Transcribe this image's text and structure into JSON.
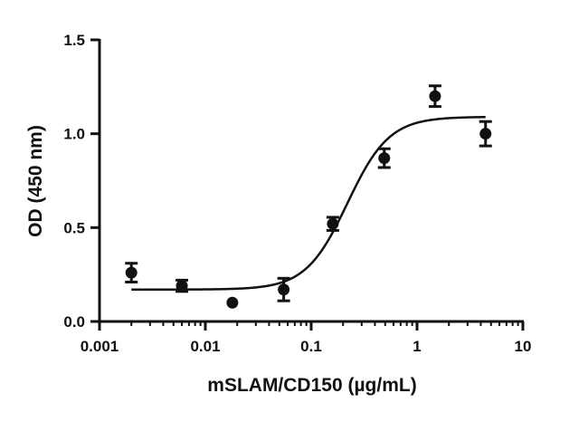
{
  "chart_data": {
    "type": "scatter",
    "title": "",
    "xlabel": "mSLAM/CD150 (µg/mL)",
    "ylabel": "OD (450 nm)",
    "xscale": "log",
    "xlim": [
      0.001,
      10
    ],
    "ylim": [
      0,
      1.5
    ],
    "x_ticks": [
      0.001,
      0.01,
      0.1,
      1,
      10
    ],
    "x_tick_labels": [
      "0.001",
      "0.01",
      "0.1",
      "1",
      "10"
    ],
    "y_ticks": [
      0,
      0.5,
      1.0,
      1.5
    ],
    "y_tick_labels": [
      "0.0",
      "0.5",
      "1.0",
      "1.5"
    ],
    "grid": false,
    "legend": "none",
    "points": [
      {
        "x": 0.002,
        "y": 0.26,
        "err": 0.05
      },
      {
        "x": 0.006,
        "y": 0.19,
        "err": 0.03
      },
      {
        "x": 0.018,
        "y": 0.1,
        "err": 0.0
      },
      {
        "x": 0.055,
        "y": 0.17,
        "err": 0.06
      },
      {
        "x": 0.16,
        "y": 0.52,
        "err": 0.035
      },
      {
        "x": 0.49,
        "y": 0.87,
        "err": 0.05
      },
      {
        "x": 1.48,
        "y": 1.2,
        "err": 0.055
      },
      {
        "x": 4.44,
        "y": 1.0,
        "err": 0.065
      }
    ],
    "fit": {
      "model": "four-parameter logistic",
      "bottom": 0.17,
      "top": 1.09,
      "ec50": 0.22,
      "hill": 2.2,
      "x_range": [
        0.002,
        4.44
      ]
    },
    "colors": {
      "axis": "#111111",
      "marker": "#111111",
      "curve": "#111111"
    }
  }
}
